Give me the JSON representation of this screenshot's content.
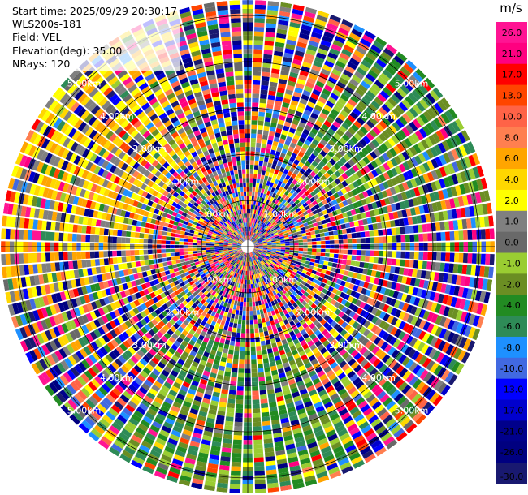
{
  "header": {
    "start_time": "Start time: 2025/09/29 20:30:17",
    "instrument": "WLS200s-181",
    "field": "Field: VEL",
    "elevation": "Elevation(deg): 35.00",
    "nrays": "NRays: 120"
  },
  "colorbar": {
    "unit": "m/s",
    "bins": [
      {
        "value": "26.0",
        "color": "#ff1493"
      },
      {
        "value": "21.0",
        "color": "#ff0080"
      },
      {
        "value": "17.0",
        "color": "#ff0000"
      },
      {
        "value": "13.0",
        "color": "#ff4500"
      },
      {
        "value": "10.0",
        "color": "#ff6347"
      },
      {
        "value": "8.0",
        "color": "#ff7f50"
      },
      {
        "value": "6.0",
        "color": "#ffa500"
      },
      {
        "value": "4.0",
        "color": "#ffd700"
      },
      {
        "value": "2.0",
        "color": "#ffff00"
      },
      {
        "value": "1.0",
        "color": "#808080"
      },
      {
        "value": "0.0",
        "color": "#696969"
      },
      {
        "value": "-1.0",
        "color": "#9acd32"
      },
      {
        "value": "-2.0",
        "color": "#6b8e23"
      },
      {
        "value": "-4.0",
        "color": "#228b22"
      },
      {
        "value": "-6.0",
        "color": "#2e8b57"
      },
      {
        "value": "-8.0",
        "color": "#1e90ff"
      },
      {
        "value": "-10.0",
        "color": "#4169e1"
      },
      {
        "value": "-13.0",
        "color": "#0000ff"
      },
      {
        "value": "-17.0",
        "color": "#0000cd"
      },
      {
        "value": "-21.0",
        "color": "#00008b"
      },
      {
        "value": "-26.0",
        "color": "#000080"
      },
      {
        "value": "-30.0",
        "color": "#191970"
      }
    ]
  },
  "chart_data": {
    "type": "heatmap",
    "projection": "polar PPI",
    "field": "VEL",
    "units": "m/s",
    "rays": 120,
    "range_rings_km": [
      "1.00km",
      "2.00km",
      "3.00km",
      "4.00km",
      "5.00km"
    ],
    "note_colors": "velocity bins from -30 to 26 m/s"
  }
}
